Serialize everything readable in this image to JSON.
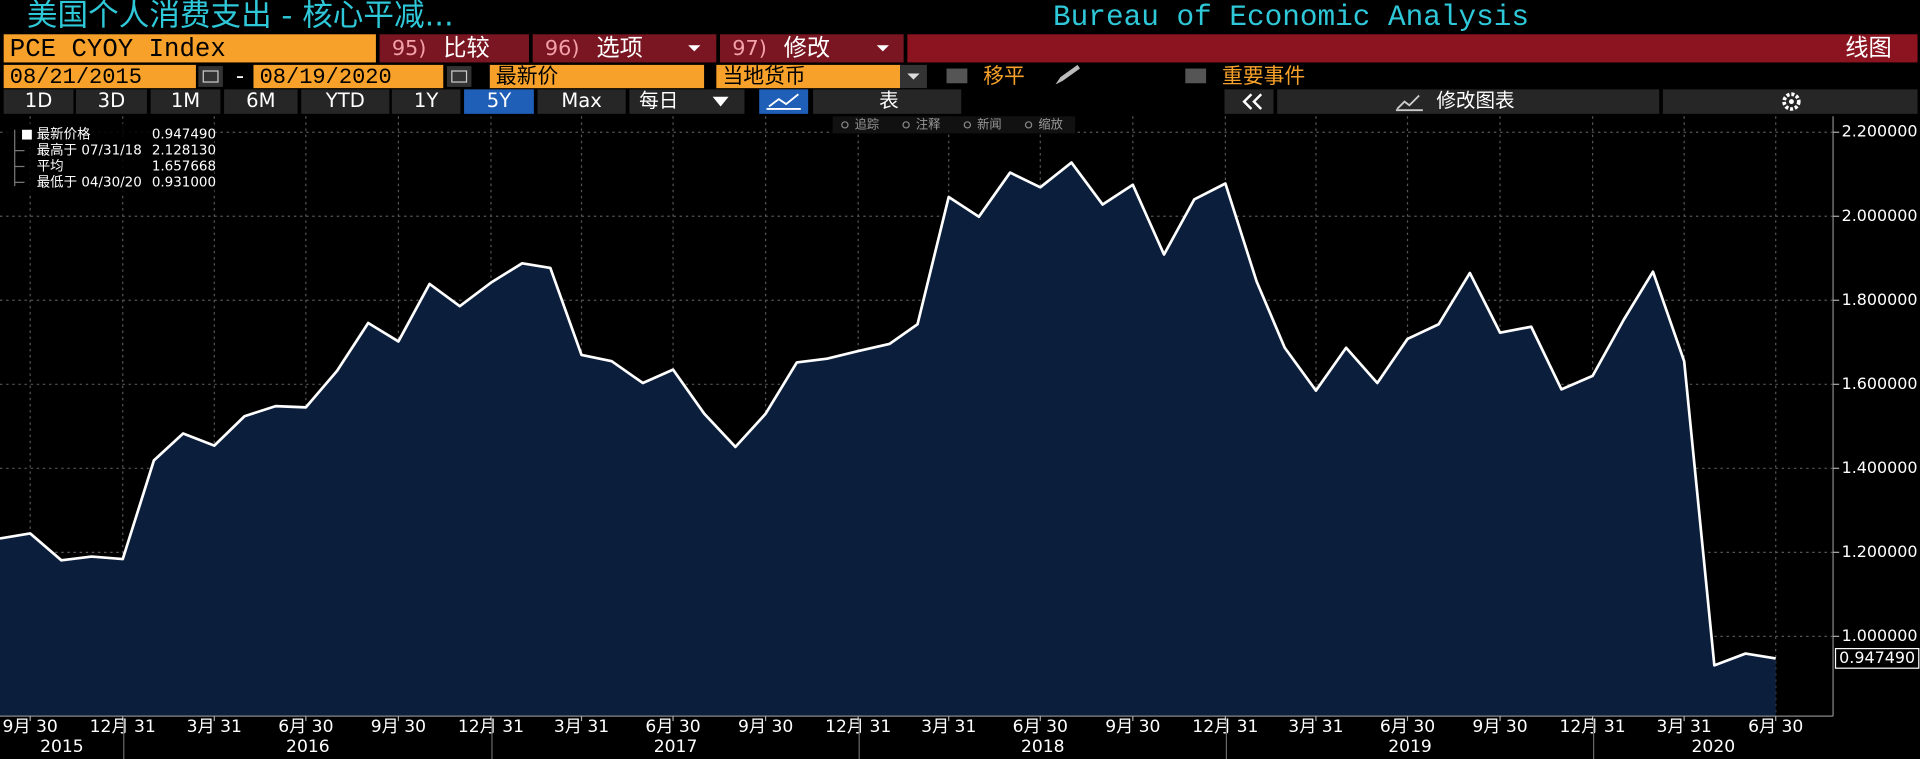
{
  "header": {
    "title": "美国个人消费支出 - 核心平减...",
    "source": "Bureau of Economic Analysis"
  },
  "toolbar": {
    "ticker": "PCE CYOY Index",
    "buttons": [
      {
        "num": "95)",
        "label": "比较"
      },
      {
        "num": "96)",
        "label": "选项"
      },
      {
        "num": "97)",
        "label": "修改"
      }
    ],
    "chart_type": "线图",
    "start_date": "08/21/2015",
    "date_sep": "-",
    "end_date": "08/19/2020",
    "price_field": "最新价",
    "currency": "当地货币",
    "moving_avg": "移平",
    "events": "重要事件"
  },
  "periods": [
    "1D",
    "3D",
    "1M",
    "6M",
    "YTD",
    "1Y",
    "5Y",
    "Max"
  ],
  "selected_period_index": 6,
  "frequency": "每日",
  "table_button": "表",
  "edit_chart": "修改图表",
  "tools": [
    "追踪",
    "注释",
    "新闻",
    "缩放"
  ],
  "legend": {
    "rows": [
      {
        "label": "最新价格",
        "value": "0.947490"
      },
      {
        "label": "最高于 07/31/18",
        "value": "2.128130"
      },
      {
        "label": "平均",
        "value": "1.657668"
      },
      {
        "label": "最低于 04/30/20",
        "value": "0.931000"
      }
    ]
  },
  "chart_data": {
    "type": "area",
    "color": "#ffffff",
    "fill": "#0b1e3b",
    "grid": true,
    "x": [
      "2015-08-31",
      "2015-09-30",
      "2015-10-31",
      "2015-11-30",
      "2015-12-31",
      "2016-01-31",
      "2016-02-29",
      "2016-03-31",
      "2016-04-30",
      "2016-05-31",
      "2016-06-30",
      "2016-07-31",
      "2016-08-31",
      "2016-09-30",
      "2016-10-31",
      "2016-11-30",
      "2016-12-31",
      "2017-01-31",
      "2017-02-28",
      "2017-03-31",
      "2017-04-30",
      "2017-05-31",
      "2017-06-30",
      "2017-07-31",
      "2017-08-31",
      "2017-09-30",
      "2017-10-31",
      "2017-11-30",
      "2017-12-31",
      "2018-01-31",
      "2018-02-28",
      "2018-03-31",
      "2018-04-30",
      "2018-05-31",
      "2018-06-30",
      "2018-07-31",
      "2018-08-31",
      "2018-09-30",
      "2018-10-31",
      "2018-11-30",
      "2018-12-31",
      "2019-01-31",
      "2019-02-28",
      "2019-03-31",
      "2019-04-30",
      "2019-05-31",
      "2019-06-30",
      "2019-07-31",
      "2019-08-31",
      "2019-09-30",
      "2019-10-31",
      "2019-11-30",
      "2019-12-31",
      "2020-01-31",
      "2020-02-29",
      "2020-03-31",
      "2020-04-30",
      "2020-05-31",
      "2020-06-30"
    ],
    "values": [
      1.233,
      1.245,
      1.181,
      1.19,
      1.184,
      1.419,
      1.483,
      1.454,
      1.524,
      1.548,
      1.545,
      1.632,
      1.746,
      1.702,
      1.839,
      1.786,
      1.842,
      1.888,
      1.877,
      1.67,
      1.655,
      1.603,
      1.635,
      1.53,
      1.451,
      1.53,
      1.652,
      1.661,
      1.679,
      1.696,
      1.743,
      2.046,
      1.999,
      2.104,
      2.069,
      2.128,
      2.028,
      2.075,
      1.909,
      2.04,
      2.078,
      1.845,
      1.687,
      1.585,
      1.687,
      1.603,
      1.708,
      1.743,
      1.865,
      1.723,
      1.737,
      1.588,
      1.62,
      1.754,
      1.868,
      1.655,
      0.931,
      0.959,
      0.9475
    ],
    "xlim": [
      "2015-08-31",
      "2020-08-26"
    ],
    "xticks": [
      {
        "value": "2015-09-30",
        "label": "9月 30"
      },
      {
        "value": "2015-12-31",
        "label": "12月 31"
      },
      {
        "value": "2016-03-31",
        "label": "3月 31"
      },
      {
        "value": "2016-06-30",
        "label": "6月 30"
      },
      {
        "value": "2016-09-30",
        "label": "9月 30"
      },
      {
        "value": "2016-12-31",
        "label": "12月 31"
      },
      {
        "value": "2017-03-31",
        "label": "3月 31"
      },
      {
        "value": "2017-06-30",
        "label": "6月 30"
      },
      {
        "value": "2017-09-30",
        "label": "9月 30"
      },
      {
        "value": "2017-12-31",
        "label": "12月 31"
      },
      {
        "value": "2018-03-31",
        "label": "3月 31"
      },
      {
        "value": "2018-06-30",
        "label": "6月 30"
      },
      {
        "value": "2018-09-30",
        "label": "9月 30"
      },
      {
        "value": "2018-12-31",
        "label": "12月 31"
      },
      {
        "value": "2019-03-31",
        "label": "3月 31"
      },
      {
        "value": "2019-06-30",
        "label": "6月 30"
      },
      {
        "value": "2019-09-30",
        "label": "9月 30"
      },
      {
        "value": "2019-12-31",
        "label": "12月 31"
      },
      {
        "value": "2020-03-31",
        "label": "3月 31"
      },
      {
        "value": "2020-06-30",
        "label": "6月 30"
      }
    ],
    "x_year_labels": [
      2015,
      2016,
      2017,
      2018,
      2019,
      2020
    ],
    "ylim": [
      0.81,
      2.238
    ],
    "yticks": [
      {
        "value": 1.0,
        "label": "1.000000"
      },
      {
        "value": 1.2,
        "label": "1.200000"
      },
      {
        "value": 1.4,
        "label": "1.400000"
      },
      {
        "value": 1.6,
        "label": "1.600000"
      },
      {
        "value": 1.8,
        "label": "1.800000"
      },
      {
        "value": 2.0,
        "label": "2.000000"
      },
      {
        "value": 2.2,
        "label": "2.200000"
      }
    ]
  }
}
